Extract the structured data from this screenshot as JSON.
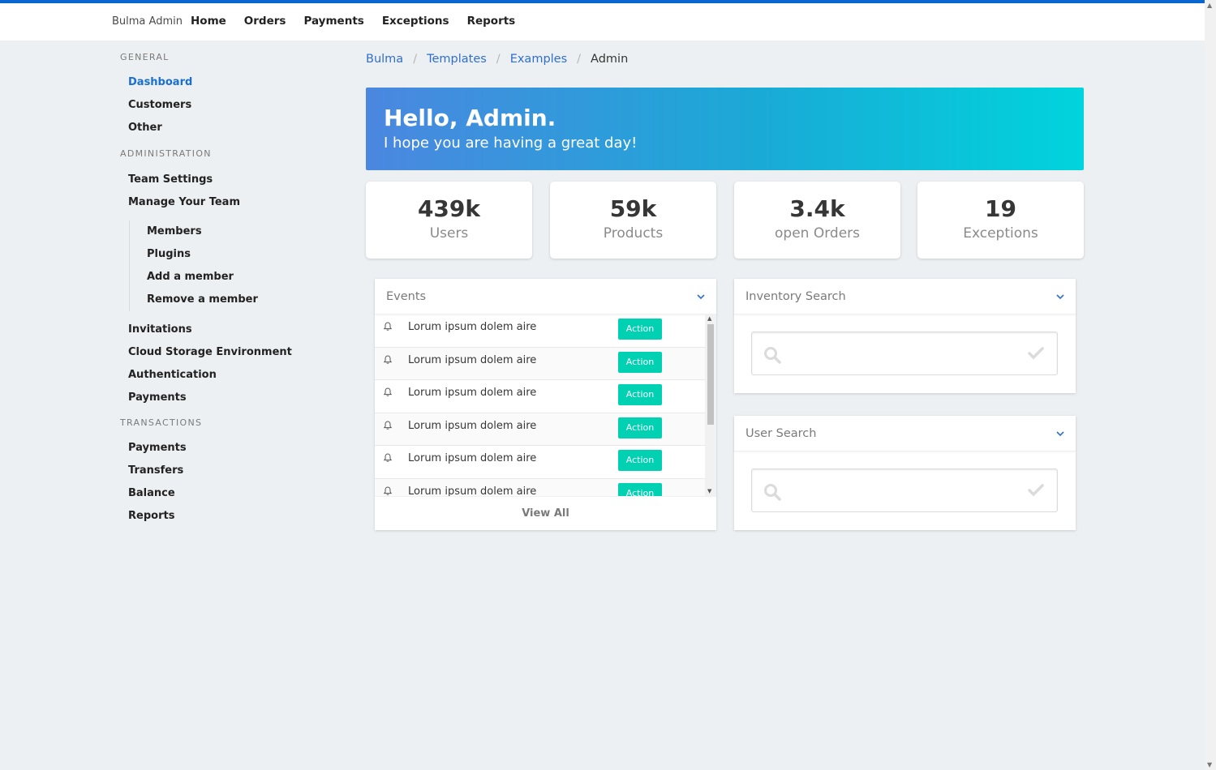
{
  "nav": {
    "brand": "Bulma Admin",
    "links": [
      "Home",
      "Orders",
      "Payments",
      "Exceptions",
      "Reports"
    ]
  },
  "sidebar": {
    "general_label": "General",
    "general_items": [
      "Dashboard",
      "Customers",
      "Other"
    ],
    "admin_label": "Administration",
    "admin_items": [
      "Team Settings",
      "Manage Your Team"
    ],
    "team_sub_items": [
      "Members",
      "Plugins",
      "Add a member",
      "Remove a member"
    ],
    "admin_items_more": [
      "Invitations",
      "Cloud Storage Environment",
      "Authentication",
      "Payments"
    ],
    "transactions_label": "Transactions",
    "transactions_items": [
      "Payments",
      "Transfers",
      "Balance",
      "Reports"
    ]
  },
  "breadcrumb": [
    "Bulma",
    "Templates",
    "Examples",
    "Admin"
  ],
  "hero": {
    "title": "Hello, Admin.",
    "subtitle": "I hope you are having a great day!"
  },
  "stats": [
    {
      "value": "439k",
      "label": "Users"
    },
    {
      "value": "59k",
      "label": "Products"
    },
    {
      "value": "3.4k",
      "label": "open Orders"
    },
    {
      "value": "19",
      "label": "Exceptions"
    }
  ],
  "events": {
    "title": "Events",
    "rows": [
      {
        "text": "Lorum ipsum dolem aire",
        "action": "Action"
      },
      {
        "text": "Lorum ipsum dolem aire",
        "action": "Action"
      },
      {
        "text": "Lorum ipsum dolem aire",
        "action": "Action"
      },
      {
        "text": "Lorum ipsum dolem aire",
        "action": "Action"
      },
      {
        "text": "Lorum ipsum dolem aire",
        "action": "Action"
      },
      {
        "text": "Lorum ipsum dolem aire",
        "action": "Action"
      }
    ],
    "footer": "View All"
  },
  "inventory_search": {
    "title": "Inventory Search",
    "placeholder": ""
  },
  "user_search": {
    "title": "User Search",
    "placeholder": ""
  },
  "colors": {
    "accent": "#0a66cf",
    "action": "#00d1b2",
    "link": "#2f6fce"
  }
}
